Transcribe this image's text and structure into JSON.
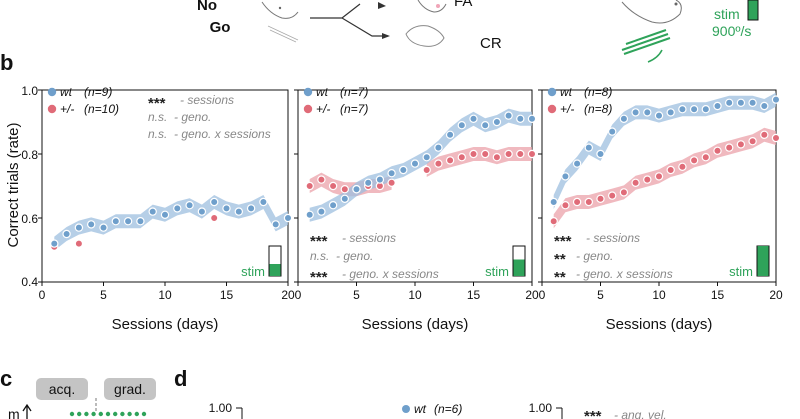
{
  "header": {
    "nogo_label": "No",
    "go_label": "Go",
    "fa_label": "FA",
    "cr_label": "CR",
    "stim_label": "stim",
    "speed_label": "900º/s"
  },
  "panel_b": {
    "letter": "b",
    "ylabel": "Correct trials (rate)",
    "xlabel": "Sessions (days)",
    "yticks": [
      "0.4",
      "0.6",
      "0.8",
      "1.0"
    ],
    "xticks": [
      "0",
      "5",
      "10",
      "15",
      "20"
    ]
  },
  "panel_c": {
    "letter": "c",
    "acq_label": "acq.",
    "grad_label": "grad."
  },
  "panel_d": {
    "letter": "d",
    "ytick_left": "1.00",
    "ytick_right": "1.00",
    "legend_wt": "wt",
    "legend_wt_n": "(n=6)",
    "stat_stars": "***",
    "stat_text": "- ang. vel."
  },
  "colors": {
    "wt": "#6f9fcb",
    "wt_band": "#9dbfdf",
    "het": "#e06b78",
    "het_band": "#eba2aa",
    "stim": "#2fa35a"
  },
  "chart_data": [
    {
      "type": "line",
      "xlim": [
        0,
        20
      ],
      "ylim": [
        0.4,
        1.0
      ],
      "xlabel": "Sessions (days)",
      "ylabel": "Correct trials (rate)",
      "legend_position": "top-left",
      "x": [
        1,
        2,
        3,
        4,
        5,
        6,
        7,
        8,
        9,
        10,
        11,
        12,
        13,
        14,
        15,
        16,
        17,
        18,
        19,
        20
      ],
      "series": [
        {
          "name": "wt",
          "n": "(n=9)",
          "values": [
            0.52,
            0.55,
            0.57,
            0.58,
            0.57,
            0.59,
            0.59,
            0.59,
            0.62,
            0.61,
            0.63,
            0.64,
            0.62,
            0.65,
            0.63,
            0.62,
            0.63,
            0.65,
            0.58,
            0.6
          ]
        },
        {
          "name": "+/-",
          "n": "(n=10)",
          "values": [
            0.51,
            null,
            0.52,
            null,
            null,
            null,
            null,
            null,
            null,
            null,
            null,
            null,
            null,
            0.6,
            null,
            null,
            null,
            null,
            null,
            null
          ]
        }
      ],
      "stats": [
        {
          "stars": "***",
          "label": "- sessions"
        },
        {
          "stars": "n.s.",
          "label": "- geno."
        },
        {
          "stars": "n.s.",
          "label": "- geno. x sessions"
        }
      ],
      "stim_label": "stim",
      "stim_fill": 0.4
    },
    {
      "type": "line",
      "xlim": [
        0,
        20
      ],
      "ylim": [
        0.4,
        1.0
      ],
      "xlabel": "Sessions (days)",
      "legend_position": "top-left",
      "x": [
        1,
        2,
        3,
        4,
        5,
        6,
        7,
        8,
        9,
        10,
        11,
        12,
        13,
        14,
        15,
        16,
        17,
        18,
        19,
        20
      ],
      "series": [
        {
          "name": "wt",
          "n": "(n=7)",
          "values": [
            0.61,
            0.62,
            0.64,
            0.66,
            0.69,
            0.71,
            0.72,
            0.74,
            0.75,
            0.77,
            0.79,
            0.82,
            0.86,
            0.89,
            0.91,
            0.89,
            0.9,
            0.92,
            0.91,
            0.91
          ]
        },
        {
          "name": "+/-",
          "n": "(n=7)",
          "values": [
            0.7,
            0.72,
            0.7,
            0.69,
            0.69,
            0.7,
            0.7,
            0.71,
            null,
            null,
            0.75,
            0.77,
            0.78,
            0.79,
            0.8,
            0.8,
            0.79,
            0.8,
            0.8,
            0.8
          ]
        }
      ],
      "stats": [
        {
          "stars": "***",
          "label": "- sessions"
        },
        {
          "stars": "n.s.",
          "label": "- geno."
        },
        {
          "stars": "***",
          "label": "- geno. x sessions"
        }
      ],
      "stim_label": "stim",
      "stim_fill": 0.55
    },
    {
      "type": "line",
      "xlim": [
        0,
        20
      ],
      "ylim": [
        0.4,
        1.0
      ],
      "xlabel": "Sessions (days)",
      "legend_position": "top-left",
      "x": [
        1,
        2,
        3,
        4,
        5,
        6,
        7,
        8,
        9,
        10,
        11,
        12,
        13,
        14,
        15,
        16,
        17,
        18,
        19,
        20
      ],
      "series": [
        {
          "name": "wt",
          "n": "(n=8)",
          "values": [
            0.65,
            0.73,
            0.77,
            0.82,
            0.8,
            0.87,
            0.91,
            0.93,
            0.93,
            0.92,
            0.93,
            0.94,
            0.94,
            0.94,
            0.95,
            0.96,
            0.96,
            0.96,
            0.95,
            0.97
          ]
        },
        {
          "name": "+/-",
          "n": "(n=8)",
          "values": [
            0.59,
            0.64,
            0.65,
            0.65,
            0.66,
            0.67,
            0.68,
            0.71,
            0.72,
            0.73,
            0.75,
            0.76,
            0.78,
            0.79,
            0.81,
            0.82,
            0.83,
            0.84,
            0.86,
            0.85
          ]
        }
      ],
      "stats": [
        {
          "stars": "***",
          "label": "- sessions"
        },
        {
          "stars": "**",
          "label": "- geno."
        },
        {
          "stars": "**",
          "label": "- geno. x sessions"
        }
      ],
      "stim_label": "stim",
      "stim_fill": 1.0
    }
  ]
}
